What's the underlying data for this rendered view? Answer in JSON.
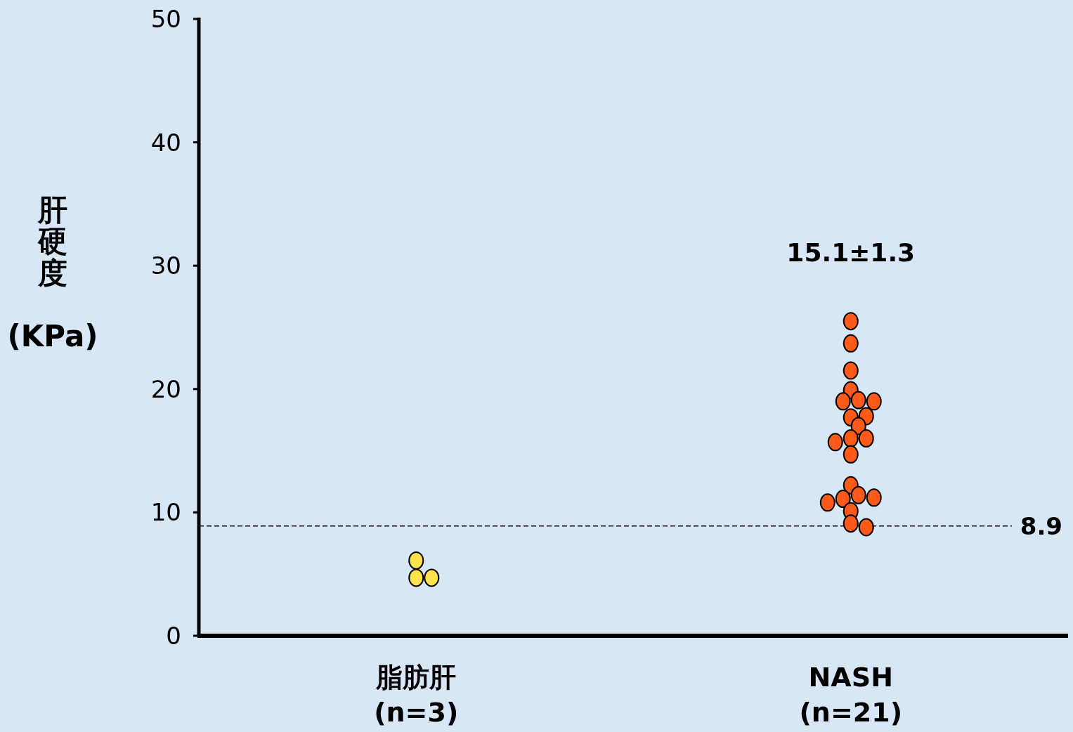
{
  "chart_data": {
    "type": "scatter",
    "ylabel": "肝硬度\n(KPa)",
    "ylim": [
      0,
      50
    ],
    "categories": [
      "脂肪肝\n(n=3)",
      "NASH\n(n=21)"
    ],
    "yticks": [
      0,
      10,
      20,
      30,
      40,
      50
    ],
    "marker": "circle",
    "series": [
      {
        "color": "#ffe34d",
        "x": [
          "脂肪肝\n(n=3)",
          "脂肪肝\n(n=3)",
          "脂肪肝\n(n=3)"
        ],
        "values": [
          6.1,
          4.7,
          4.7
        ]
      },
      {
        "color": "#ff5a1a",
        "x": [
          "NASH\n(n=21)",
          "NASH\n(n=21)",
          "NASH\n(n=21)",
          "NASH\n(n=21)",
          "NASH\n(n=21)",
          "NASH\n(n=21)",
          "NASH\n(n=21)",
          "NASH\n(n=21)",
          "NASH\n(n=21)",
          "NASH\n(n=21)",
          "NASH\n(n=21)",
          "NASH\n(n=21)",
          "NASH\n(n=21)",
          "NASH\n(n=21)",
          "NASH\n(n=21)",
          "NASH\n(n=21)",
          "NASH\n(n=21)",
          "NASH\n(n=21)",
          "NASH\n(n=21)",
          "NASH\n(n=21)",
          "NASH\n(n=21)",
          "NASH\n(n=21)"
        ],
        "values": [
          25.5,
          23.7,
          21.5,
          19.9,
          19.1,
          19.0,
          19.0,
          17.7,
          17.8,
          17.0,
          16.0,
          16.0,
          15.7,
          14.7,
          12.2,
          11.4,
          11.1,
          11.2,
          10.8,
          10.1,
          9.1,
          8.8
        ]
      }
    ],
    "ref_lines": [
      {
        "axis": "y",
        "value": 8.9,
        "label": "8.9",
        "line_style": "dashed",
        "color": "#000000"
      }
    ],
    "annotations": [
      "15.1±1.3"
    ]
  }
}
